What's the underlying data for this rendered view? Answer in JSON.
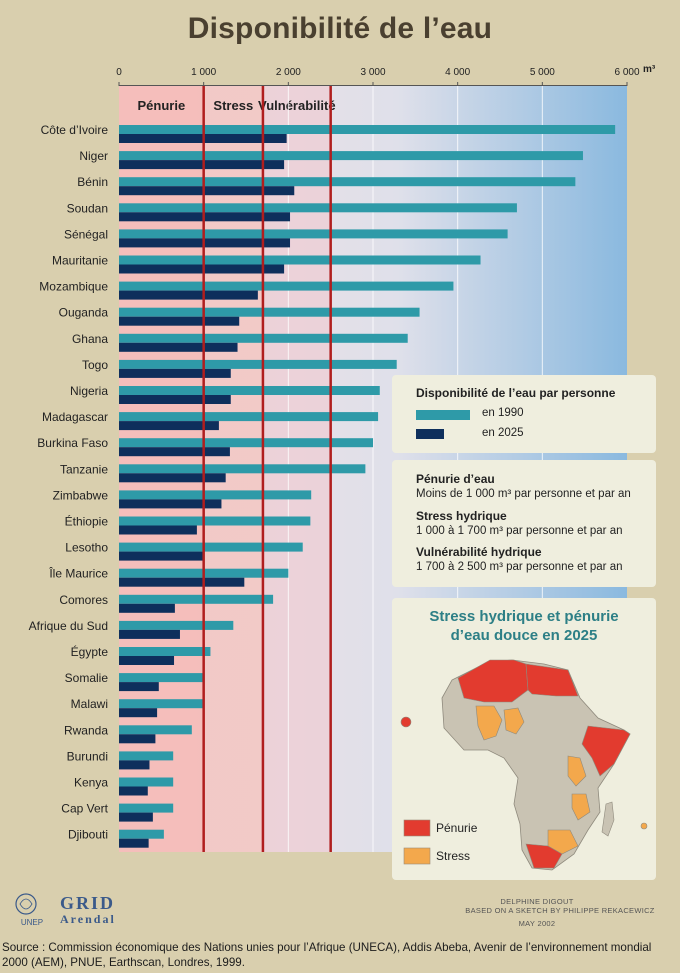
{
  "title": "Disponibilité de l’eau",
  "chart_data": {
    "type": "bar",
    "unit": "m³",
    "xlim": [
      0,
      6000
    ],
    "ticks": [
      "0",
      "1 000",
      "2 000",
      "3 000",
      "4 000",
      "5 000",
      "6 000"
    ],
    "thresholds": [
      1000,
      1700,
      2500
    ],
    "zones": [
      {
        "label": "Pénurie",
        "color": "#f6b8b4"
      },
      {
        "label": "Stress",
        "color": "#f3c6c2"
      },
      {
        "label": "Vulnérabilité",
        "color": "#eccfd6"
      }
    ],
    "categories": [
      "Côte d’Ivoire",
      "Niger",
      "Bénin",
      "Soudan",
      "Sénégal",
      "Mauritanie",
      "Mozambique",
      "Ouganda",
      "Ghana",
      "Togo",
      "Nigeria",
      "Madagascar",
      "Burkina Faso",
      "Tanzanie",
      "Zimbabwe",
      "Éthiopie",
      "Lesotho",
      "Île Maurice",
      "Comores",
      "Afrique du Sud",
      "Égypte",
      "Somalie",
      "Malawi",
      "Rwanda",
      "Burundi",
      "Kenya",
      "Cap Vert",
      "Djibouti"
    ],
    "series": [
      {
        "name": "en 1990",
        "color": "#2e9aa8",
        "values": [
          5860,
          5480,
          5390,
          4700,
          4590,
          4270,
          3950,
          3550,
          3410,
          3280,
          3080,
          3060,
          3000,
          2910,
          2270,
          2260,
          2170,
          2000,
          1820,
          1350,
          1080,
          990,
          990,
          860,
          640,
          640,
          640,
          530
        ]
      },
      {
        "name": "en 2025",
        "color": "#0e2f5c",
        "values": [
          1980,
          1950,
          2070,
          2020,
          2020,
          1950,
          1640,
          1420,
          1400,
          1320,
          1320,
          1180,
          1310,
          1260,
          1210,
          920,
          990,
          1480,
          660,
          720,
          650,
          470,
          450,
          430,
          360,
          340,
          400,
          350
        ]
      }
    ]
  },
  "legend": {
    "title": "Disponibilité de l’eau par personne",
    "item_1990": "en 1990",
    "item_2025": "en 2025"
  },
  "definitions": [
    {
      "title": "Pénurie d’eau",
      "text": "Moins de 1 000 m³ par personne et par an"
    },
    {
      "title": "Stress hydrique",
      "text": "1 000 à 1 700 m³ par personne et par an"
    },
    {
      "title": "Vulnérabilité hydrique",
      "text": "1 700 à 2 500 m³ par personne et par an"
    }
  ],
  "map": {
    "title_line1": "Stress hydrique et pénurie",
    "title_line2": "d’eau douce en 2025",
    "legend_penurie": "Pénurie",
    "legend_stress": "Stress",
    "color_penurie": "#e23b2f",
    "color_stress": "#f3a84c",
    "color_land": "#c9c3b3"
  },
  "credits": {
    "line1": "DELPHINE DIGOUT",
    "line2": "BASED ON A SKETCH BY PHILIPPE REKACEWICZ",
    "line3": "MAY 2002"
  },
  "logos": {
    "unep": "UNEP",
    "grid": "GRID",
    "arendal": "Arendal"
  },
  "source": "Source : Commission économique des Nations unies pour l’Afrique (UNECA), Addis Abeba, Avenir de l’environnement mondial 2000 (AEM), PNUE, Earthscan, Londres, 1999."
}
